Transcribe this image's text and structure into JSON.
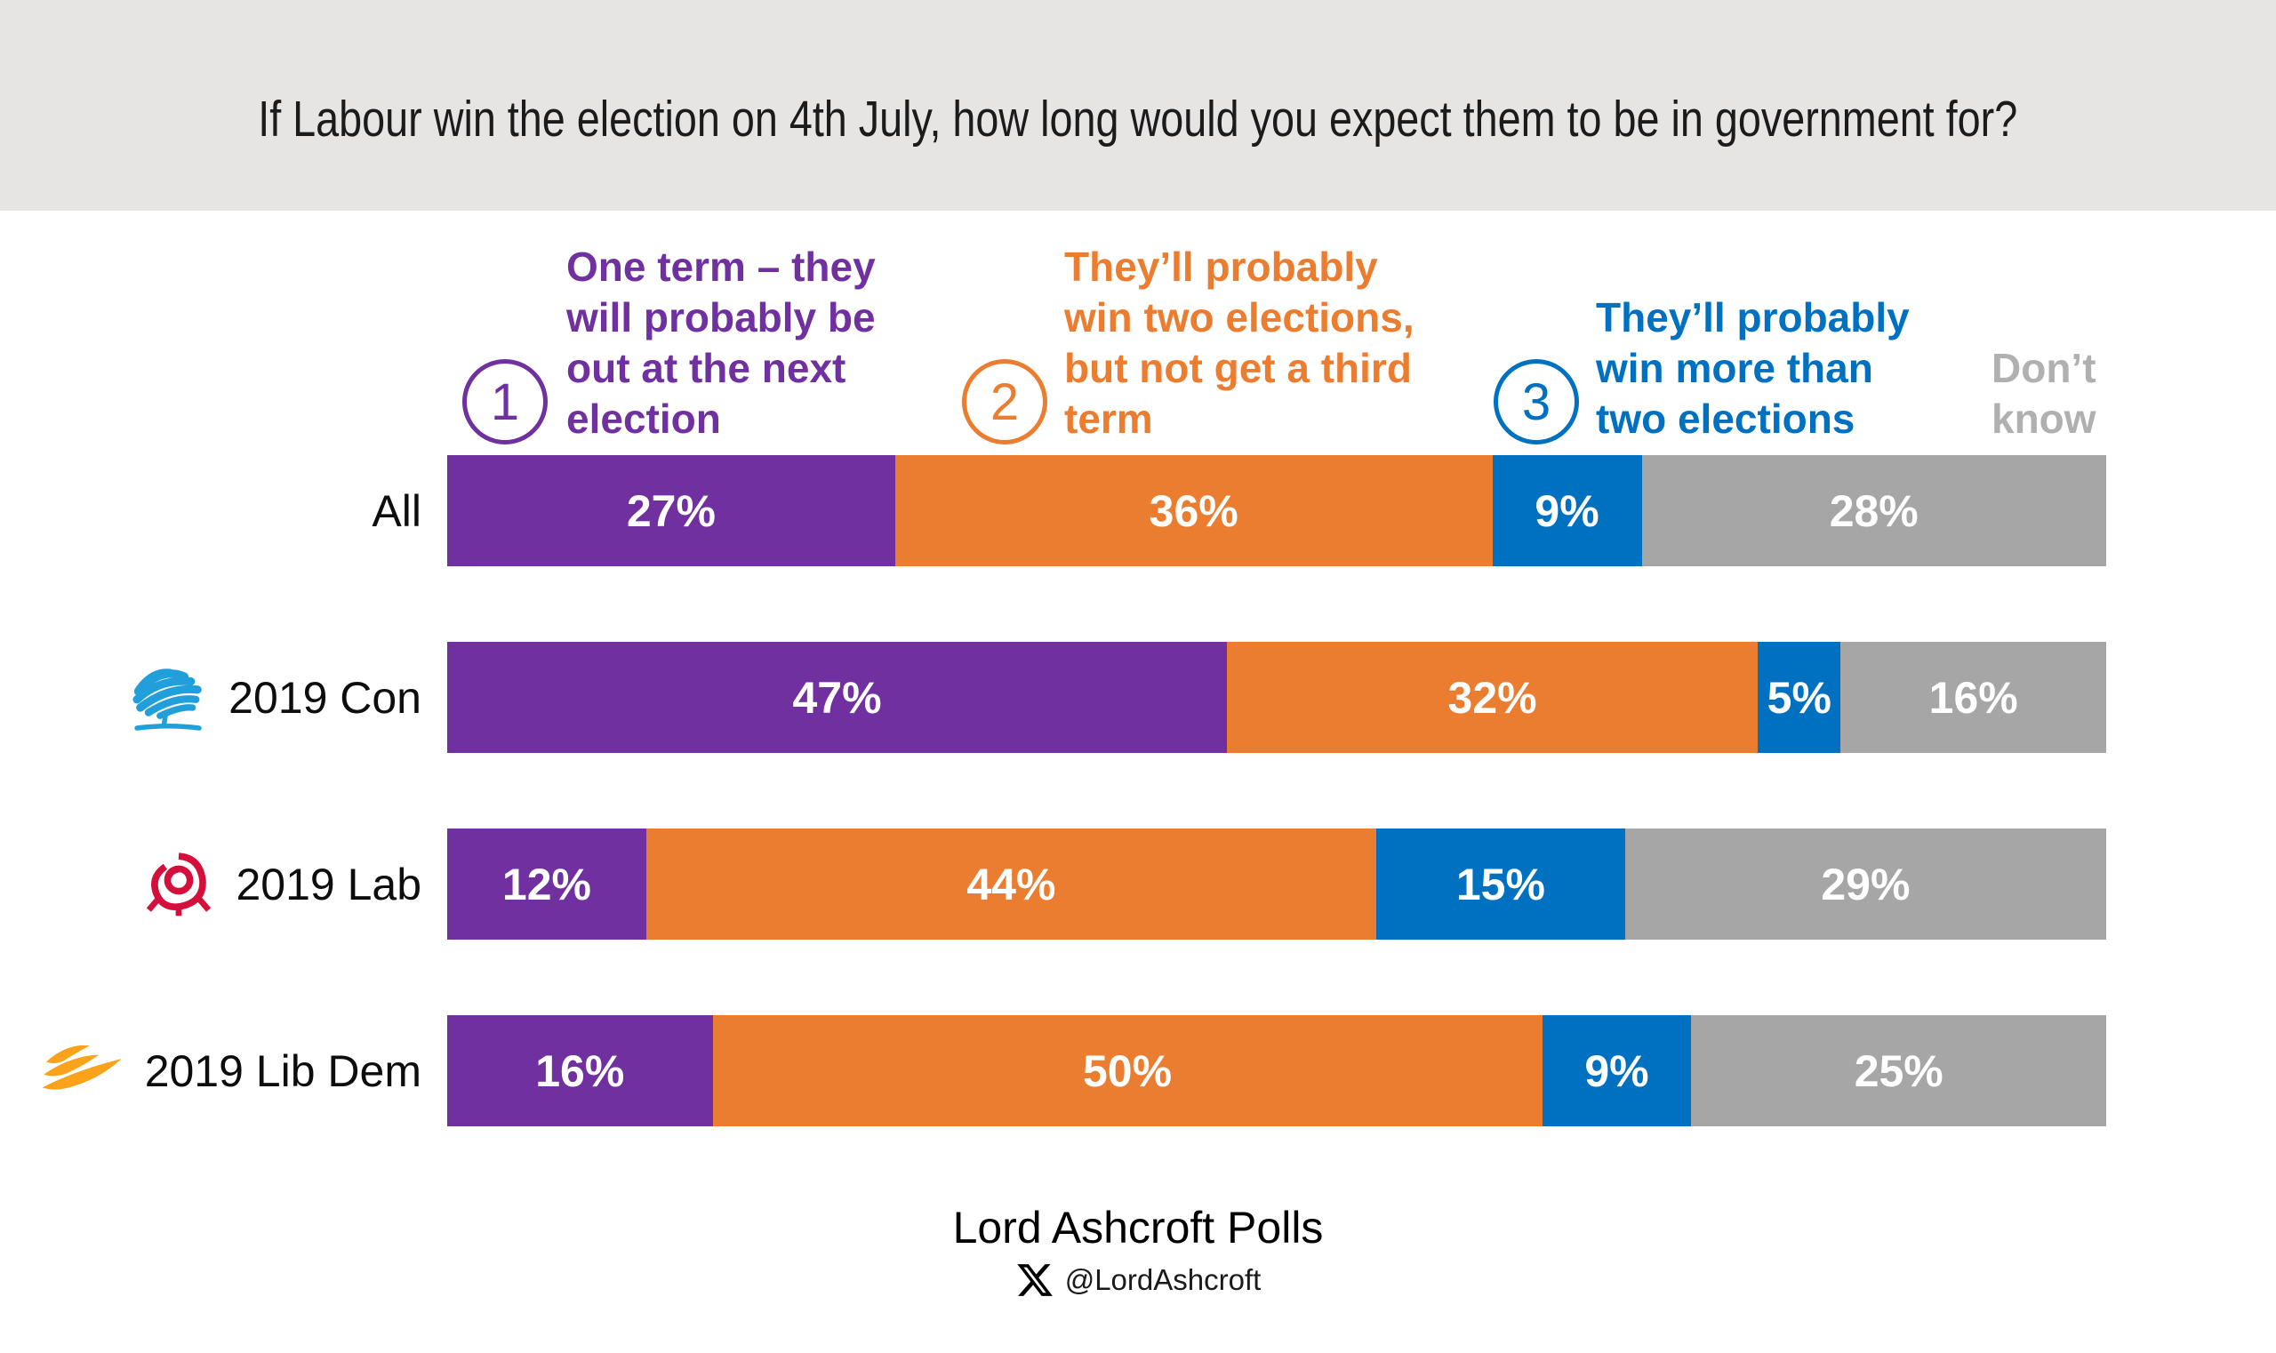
{
  "title": "If Labour win the election on 4th July, how long would you expect them to be in government for?",
  "legend": {
    "items": [
      {
        "number": "1",
        "label": "One term – they will probably be out at the next election",
        "lines": [
          "One term – they",
          "will probably be",
          "out at the next",
          "election"
        ],
        "color": "#7030A0"
      },
      {
        "number": "2",
        "label": "They’ll probably win two elections, but not get a third term",
        "lines": [
          "They’ll probably",
          "win two elections,",
          "but not get a third",
          "term"
        ],
        "color": "#EB7D30"
      },
      {
        "number": "3",
        "label": "They’ll probably win more than two elections",
        "lines": [
          "They’ll probably",
          "win more than",
          "two elections"
        ],
        "color": "#0070C0"
      },
      {
        "number": "",
        "label": "Don’t know",
        "lines": [
          "Don’t",
          "know"
        ],
        "color": "#B1AFB0"
      }
    ]
  },
  "chart_data": {
    "type": "bar",
    "orientation": "horizontal-stacked",
    "title": "If Labour win the election on 4th July, how long would you expect them to be in government for?",
    "unit": "%",
    "xlim": [
      0,
      100
    ],
    "grid": false,
    "legend_position": "top",
    "categories": [
      "All",
      "2019 Con",
      "2019 Lab",
      "2019 Lib Dem"
    ],
    "series": [
      {
        "name": "One term – they will probably be out at the next election",
        "color": "#7030A0",
        "values": [
          27,
          47,
          12,
          16
        ]
      },
      {
        "name": "They’ll probably win two elections, but not get a third term",
        "color": "#EB7D30",
        "values": [
          36,
          32,
          44,
          50
        ]
      },
      {
        "name": "They’ll probably win more than two elections",
        "color": "#0070C0",
        "values": [
          9,
          5,
          15,
          9
        ]
      },
      {
        "name": "Don’t know",
        "color": "#A6A6A6",
        "values": [
          28,
          16,
          29,
          25
        ]
      }
    ]
  },
  "rows": [
    {
      "label": "All",
      "icon": "none",
      "segments": [
        {
          "text": "27%"
        },
        {
          "text": "36%"
        },
        {
          "text": "9%"
        },
        {
          "text": "28%"
        }
      ]
    },
    {
      "label": "2019 Con",
      "icon": "conservative-tree-logo",
      "segments": [
        {
          "text": "47%"
        },
        {
          "text": "32%"
        },
        {
          "text": "5%"
        },
        {
          "text": "16%"
        }
      ]
    },
    {
      "label": "2019 Lab",
      "icon": "labour-rose-logo",
      "segments": [
        {
          "text": "12%"
        },
        {
          "text": "44%"
        },
        {
          "text": "15%"
        },
        {
          "text": "29%"
        }
      ]
    },
    {
      "label": "2019 Lib Dem",
      "icon": "libdem-bird-logo",
      "segments": [
        {
          "text": "16%"
        },
        {
          "text": "50%"
        },
        {
          "text": "9%"
        },
        {
          "text": "25%"
        }
      ]
    }
  ],
  "colors": {
    "title_band_bg": "#E7E4E4",
    "purple": "#7030A0",
    "orange": "#EB7D30",
    "blue": "#0070C0",
    "gray_bar": "#A6A6A6",
    "dont_know_text": "#B1AFB0",
    "conservative_logo_blue": "#219FDA",
    "labour_logo_red": "#D50F3C",
    "libdem_logo_gold": "#F9A21A",
    "x_logo_black": "#000000"
  },
  "footer": {
    "source": "Lord Ashcroft Polls",
    "handle": "@LordAshcroft"
  }
}
